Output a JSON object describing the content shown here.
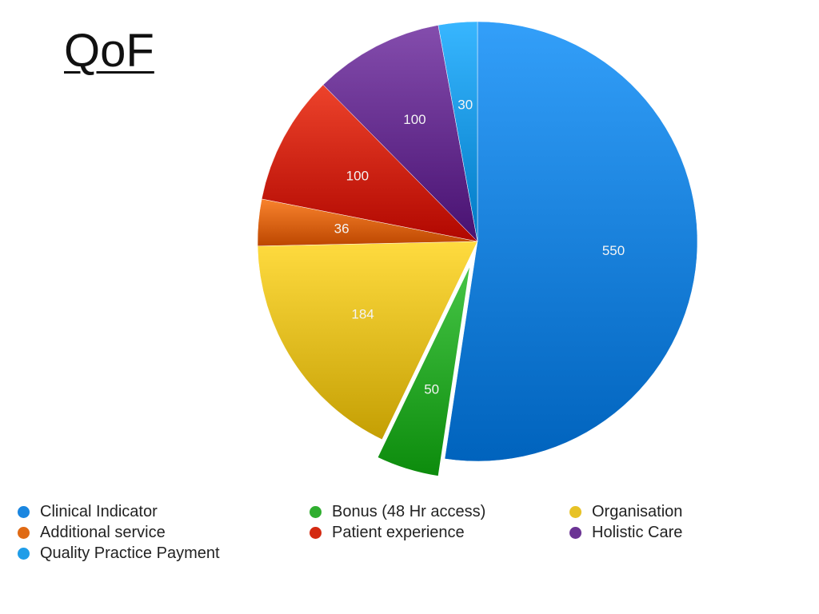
{
  "chart_data": {
    "type": "pie",
    "title": "QoF",
    "slices": [
      {
        "label": "Clinical Indicator",
        "value": 550,
        "color": "#1a86e0"
      },
      {
        "label": "Bonus (48 Hr access)",
        "value": 50,
        "color": "#2fae2f",
        "exploded": true
      },
      {
        "label": "Organisation",
        "value": 184,
        "color": "#e7c226"
      },
      {
        "label": "Additional service",
        "value": 36,
        "color": "#e06a14"
      },
      {
        "label": "Patient experience",
        "value": 100,
        "color": "#d42a12"
      },
      {
        "label": "Holistic Care",
        "value": 100,
        "color": "#6b3494"
      },
      {
        "label": "Quality Practice Payment",
        "value": 30,
        "color": "#1f9de8"
      }
    ],
    "legend": [
      {
        "label": "Clinical Indicator",
        "color": "#1a86e0"
      },
      {
        "label": "Bonus (48 Hr access)",
        "color": "#2fae2f"
      },
      {
        "label": "Organisation",
        "color": "#e7c226"
      },
      {
        "label": "Additional service",
        "color": "#e06a14"
      },
      {
        "label": "Patient experience",
        "color": "#d42a12"
      },
      {
        "label": "Holistic Care",
        "color": "#6b3494"
      },
      {
        "label": "Quality Practice Payment",
        "color": "#1f9de8"
      }
    ],
    "legend_position": "bottom"
  }
}
